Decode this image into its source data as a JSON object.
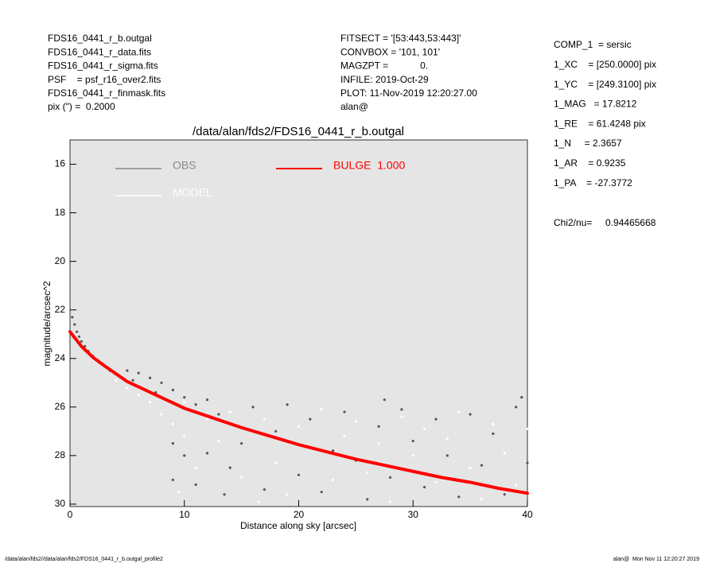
{
  "header": {
    "left": [
      "FDS16_0441_r_b.outgal",
      "FDS16_0441_r_data.fits",
      "FDS16_0441_r_sigma.fits",
      "PSF    = psf_r16_over2.fits",
      "FDS16_0441_r_finmask.fits",
      "pix (\") =  0.2000"
    ],
    "middle": [
      "FITSECT = '[53:443,53:443]'",
      "CONVBOX = '101, 101'",
      "MAGZPT =            0.",
      "INFILE: 2019-Oct-29",
      "PLOT: 11-Nov-2019 12:20:27.00",
      "alan@"
    ],
    "right": [
      "COMP_1  = sersic",
      "1_XC    = [250.0000] pix",
      "1_YC    = [249.3100] pix",
      "1_MAG   = 17.8212",
      "1_RE    = 61.4248 pix",
      "1_N     = 2.3657",
      "1_AR    = 0.9235",
      "1_PA    = -27.3772"
    ],
    "chi2": "Chi2/nu=     0.94465668"
  },
  "footer": {
    "left": "/data/alan/fds2//data/alan/fds2/FDS16_0441_r_b.outgal_profile2",
    "right": "alan@  Mon Nov 11 12:20:27 2019"
  },
  "chart_data": {
    "type": "scatter",
    "title": "/data/alan/fds2/FDS16_0441_r_b.outgal",
    "x_label": "Distance along sky [arcsec]",
    "y_label": "magnitude/arcsec^2",
    "xlim": [
      0,
      40
    ],
    "ylim": [
      30.1,
      15
    ],
    "xticks": [
      0,
      10,
      20,
      30,
      40
    ],
    "yticks": [
      16,
      18,
      20,
      22,
      24,
      26,
      28,
      30
    ],
    "series": [
      {
        "name": "OBS",
        "color": "#555555",
        "legend_color": "#888888",
        "mode": "markers",
        "x": [
          0.2,
          0.4,
          0.6,
          0.8,
          1.0,
          1.3,
          1.6,
          2.0,
          2.5,
          3.0,
          3.5,
          4.0,
          5,
          6,
          7,
          8,
          9,
          10,
          11,
          12,
          9,
          9,
          10,
          11,
          12,
          13,
          14,
          15,
          16,
          17,
          18,
          19,
          20,
          21,
          22,
          23,
          24,
          25,
          26,
          27,
          28,
          29,
          30,
          31,
          32,
          33,
          34,
          35,
          36,
          37,
          38,
          39,
          40,
          5.5,
          7.5,
          13.5,
          27.5,
          39.5
        ],
        "values": [
          22.3,
          22.6,
          22.9,
          23.1,
          23.3,
          23.5,
          23.7,
          23.9,
          24.1,
          24.3,
          24.5,
          24.6,
          24.5,
          24.6,
          24.8,
          25.0,
          25.3,
          25.6,
          25.9,
          25.7,
          27.5,
          29.0,
          28.0,
          29.2,
          27.9,
          26.3,
          28.5,
          27.5,
          26.0,
          29.4,
          27.0,
          25.9,
          28.8,
          26.5,
          29.5,
          27.8,
          26.2,
          28.2,
          29.8,
          26.8,
          28.9,
          26.1,
          27.4,
          29.3,
          26.5,
          28.0,
          29.7,
          26.3,
          28.4,
          27.1,
          29.6,
          26.0,
          28.3,
          24.9,
          25.4,
          29.6,
          25.7,
          25.6
        ]
      },
      {
        "name": "MODEL",
        "color": "#ffffff",
        "legend_color": "#ffffff",
        "mode": "markers",
        "x": [
          4,
          5,
          6,
          7,
          8,
          9,
          10,
          10,
          11,
          12,
          13,
          14,
          15,
          16,
          17,
          18,
          19,
          20,
          21,
          22,
          23,
          24,
          25,
          26,
          27,
          28,
          29,
          30,
          31,
          32,
          33,
          34,
          35,
          36,
          37,
          38,
          39,
          40,
          9.5,
          16.5
        ],
        "values": [
          24.9,
          25.2,
          25.5,
          25.8,
          26.3,
          26.7,
          27.2,
          25.8,
          28.5,
          26.5,
          27.4,
          26.2,
          28.9,
          27.0,
          26.5,
          28.3,
          29.6,
          26.8,
          27.7,
          26.1,
          29.0,
          27.2,
          26.6,
          28.7,
          27.5,
          29.9,
          26.4,
          28.0,
          26.9,
          29.1,
          27.3,
          26.2,
          28.5,
          29.8,
          26.7,
          27.9,
          29.2,
          26.9,
          29.5,
          29.9
        ]
      },
      {
        "name": "BULGE  1.000",
        "color": "#ff0000",
        "legend_color": "#ff0000",
        "mode": "line",
        "x": [
          0,
          1,
          2,
          3,
          5,
          7.5,
          10,
          12.5,
          15,
          17.5,
          20,
          22.5,
          25,
          27.5,
          30,
          32.5,
          35,
          37.5,
          40
        ],
        "values": [
          22.9,
          23.5,
          23.95,
          24.3,
          24.95,
          25.5,
          26.05,
          26.45,
          26.85,
          27.2,
          27.55,
          27.85,
          28.15,
          28.4,
          28.65,
          28.9,
          29.1,
          29.35,
          29.55
        ]
      }
    ]
  }
}
